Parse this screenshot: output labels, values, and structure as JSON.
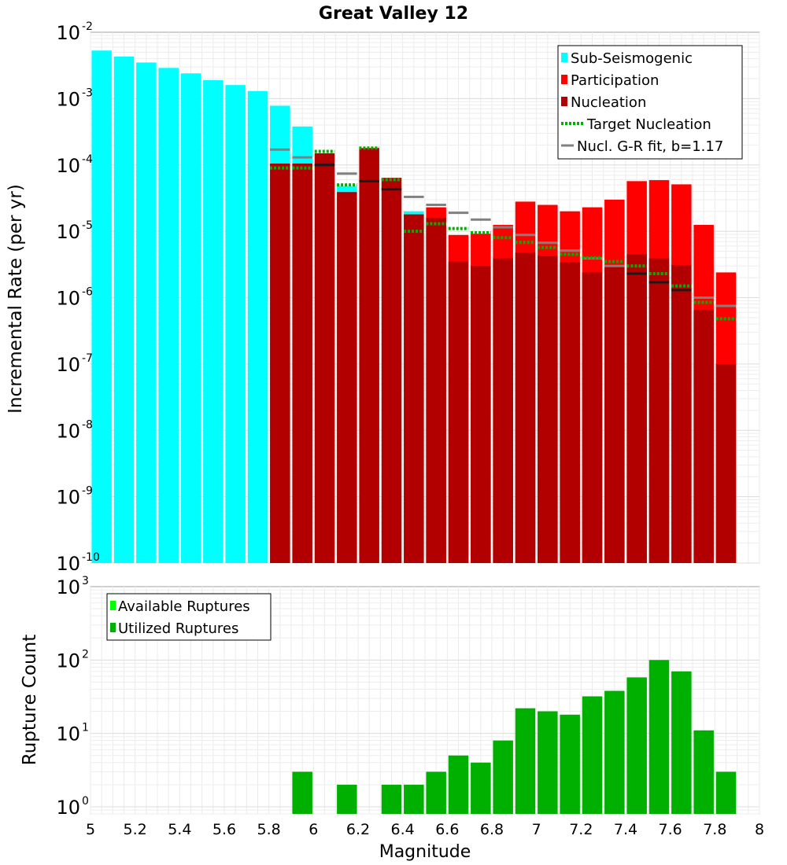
{
  "chart_data": [
    {
      "type": "bar",
      "title": "Great Valley 12",
      "xlabel": "",
      "ylabel": "Incremental Rate (per yr)",
      "yscale": "log",
      "xlim": [
        5,
        8
      ],
      "ylim": [
        1e-10,
        0.01
      ],
      "y_ticks": [
        {
          "base": "10",
          "exp": "-2",
          "value": 0.01
        },
        {
          "base": "10",
          "exp": "-3",
          "value": 0.001
        },
        {
          "base": "10",
          "exp": "-4",
          "value": 0.0001
        },
        {
          "base": "10",
          "exp": "-5",
          "value": 1e-05
        },
        {
          "base": "10",
          "exp": "-6",
          "value": 1e-06
        },
        {
          "base": "10",
          "exp": "-7",
          "value": 1e-07
        },
        {
          "base": "10",
          "exp": "-8",
          "value": 1e-08
        },
        {
          "base": "10",
          "exp": "-9",
          "value": 1e-09
        },
        {
          "base": "10",
          "exp": "-10",
          "value": 1e-10
        }
      ],
      "bar_width": 0.09,
      "legend_position": "top-right",
      "legend": [
        {
          "label": "Sub-Seismogenic",
          "color": "#00ffff",
          "kind": "bar"
        },
        {
          "label": "Participation",
          "color": "#ff0000",
          "kind": "bar"
        },
        {
          "label": "Nucleation",
          "color": "#b20000",
          "kind": "bar"
        },
        {
          "label": "Target Nucleation",
          "color": "#00b000",
          "kind": "dotted"
        },
        {
          "label": "Nucl. G-R fit, b=1.17",
          "color": "#808080",
          "kind": "line"
        }
      ],
      "series": [
        {
          "name": "Sub-Seismogenic",
          "color": "#00ffff",
          "x": [
            5.05,
            5.15,
            5.25,
            5.35,
            5.45,
            5.55,
            5.65,
            5.75,
            5.85,
            5.95,
            6.15,
            6.45
          ],
          "values": [
            0.0053,
            0.0043,
            0.0035,
            0.0029,
            0.0024,
            0.0019,
            0.0016,
            0.0013,
            0.00078,
            0.00038,
            4.8e-05,
            2e-05
          ]
        },
        {
          "name": "Participation",
          "color": "#ff0000",
          "x": [
            6.55,
            6.65,
            6.75,
            6.85,
            6.95,
            7.05,
            7.15,
            7.25,
            7.35,
            7.45,
            7.55,
            7.65,
            7.75,
            7.85
          ],
          "values": [
            2.3e-05,
            8.8e-06,
            9.2e-06,
            1.25e-05,
            2.8e-05,
            2.5e-05,
            2e-05,
            2.3e-05,
            3e-05,
            5.7e-05,
            5.9e-05,
            5.1e-05,
            1.25e-05,
            2.4e-06
          ]
        },
        {
          "name": "Nucleation",
          "color": "#b20000",
          "x": [
            5.85,
            5.95,
            6.05,
            6.15,
            6.25,
            6.35,
            6.45,
            6.55,
            6.65,
            6.75,
            6.85,
            6.95,
            7.05,
            7.15,
            7.25,
            7.35,
            7.45,
            7.55,
            7.65,
            7.75,
            7.85
          ],
          "values": [
            0.000105,
            0.000105,
            0.00015,
            3.9e-05,
            0.00018,
            6.4e-05,
            1.8e-05,
            1.6e-05,
            3.5e-06,
            3e-06,
            3.9e-06,
            4.8e-06,
            4.3e-06,
            3.4e-06,
            2.4e-06,
            2.9e-06,
            4.5e-06,
            3.9e-06,
            3.1e-06,
            6.5e-07,
            1e-07
          ]
        },
        {
          "name": "Target Nucleation",
          "color": "#00b000",
          "x": [
            5.85,
            5.95,
            6.05,
            6.15,
            6.25,
            6.35,
            6.45,
            6.55,
            6.65,
            6.75,
            6.85,
            6.95,
            7.05,
            7.15,
            7.25,
            7.35,
            7.45,
            7.55,
            7.65,
            7.75,
            7.85
          ],
          "values": [
            9e-05,
            9e-05,
            0.00016,
            5e-05,
            0.00018,
            6e-05,
            1e-05,
            1.3e-05,
            1.1e-05,
            9.5e-06,
            8e-06,
            6.8e-06,
            5.7e-06,
            4.5e-06,
            4e-06,
            3.5e-06,
            3e-06,
            2.3e-06,
            1.5e-06,
            8.5e-07,
            4.8e-07
          ]
        },
        {
          "name": "Nucl. G-R fit, b=1.17",
          "color": "#808080",
          "x": [
            5.85,
            5.95,
            6.05,
            6.15,
            6.25,
            6.35,
            6.45,
            6.55,
            6.65,
            6.75,
            6.85,
            6.95,
            7.05,
            7.15,
            7.25,
            7.35,
            7.45,
            7.55,
            7.65,
            7.75,
            7.85
          ],
          "values": [
            0.00017,
            0.00013,
            0.0001,
            7.4e-05,
            5.7e-05,
            4.3e-05,
            3.3e-05,
            2.5e-05,
            1.9e-05,
            1.5e-05,
            1.15e-05,
            8.8e-06,
            6.7e-06,
            5.1e-06,
            3.9e-06,
            3e-06,
            2.3e-06,
            1.7e-06,
            1.3e-06,
            1e-06,
            7.5e-07
          ]
        }
      ]
    },
    {
      "type": "bar",
      "title": "",
      "xlabel": "Magnitude",
      "ylabel": "Rupture Count",
      "yscale": "log",
      "xlim": [
        5,
        8
      ],
      "ylim": [
        0.8,
        1000
      ],
      "y_ticks": [
        {
          "base": "10",
          "exp": "3",
          "value": 1000
        },
        {
          "base": "10",
          "exp": "2",
          "value": 100
        },
        {
          "base": "10",
          "exp": "1",
          "value": 10
        },
        {
          "base": "10",
          "exp": "0",
          "value": 1
        }
      ],
      "x_ticks": [
        "5",
        "5.2",
        "5.4",
        "5.6",
        "5.8",
        "6",
        "6.2",
        "6.4",
        "6.6",
        "6.8",
        "7",
        "7.2",
        "7.4",
        "7.6",
        "7.8",
        "8"
      ],
      "bar_width": 0.09,
      "legend_position": "top-left",
      "legend": [
        {
          "label": "Available Ruptures",
          "color": "#00ff00",
          "kind": "bar"
        },
        {
          "label": "Utilized Ruptures",
          "color": "#00b000",
          "kind": "bar"
        }
      ],
      "series": [
        {
          "name": "Utilized Ruptures",
          "color": "#00b000",
          "x": [
            5.95,
            6.15,
            6.35,
            6.45,
            6.55,
            6.65,
            6.75,
            6.85,
            6.95,
            7.05,
            7.15,
            7.25,
            7.35,
            7.45,
            7.55,
            7.65,
            7.75,
            7.85
          ],
          "values": [
            3,
            2,
            2,
            2,
            3,
            5,
            4,
            8,
            22,
            20,
            18,
            32,
            38,
            58,
            100,
            70,
            11,
            3
          ]
        }
      ]
    }
  ]
}
